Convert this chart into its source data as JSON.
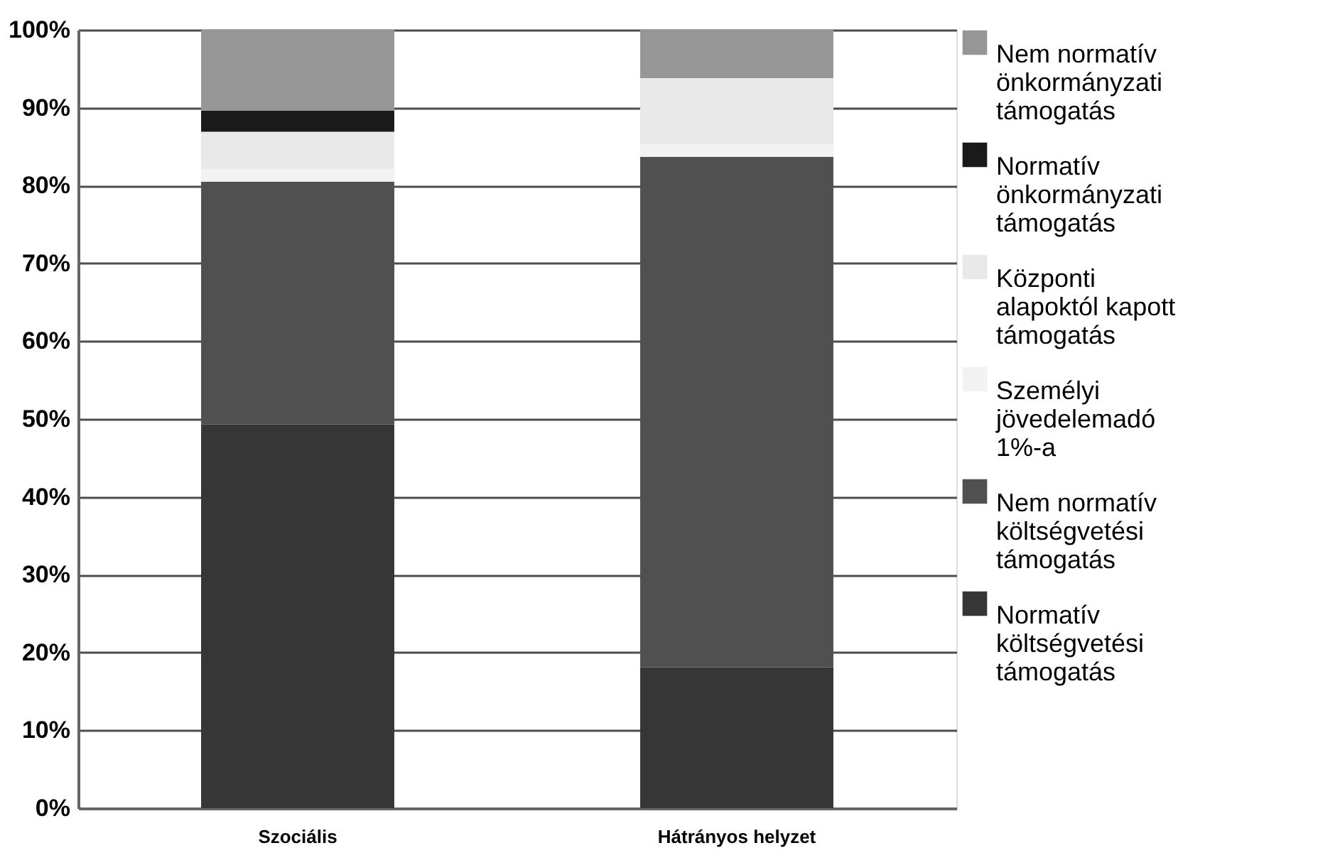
{
  "chart_data": {
    "type": "bar",
    "stacked": true,
    "categories": [
      "Szociális",
      "Hátrányos helyzet"
    ],
    "series": [
      {
        "name": "Normatív költségvetési támogatás",
        "color": "#363636",
        "values": [
          49.3,
          18.1
        ]
      },
      {
        "name": "Nem normatív költségvetési támogatás",
        "color": "#505050",
        "values": [
          31.2,
          65.6
        ]
      },
      {
        "name": "Személyi jövedelemadó 1%-a",
        "color": "#f2f2f2",
        "values": [
          1.6,
          1.6
        ]
      },
      {
        "name": "Központi alapoktól kapott támogatás",
        "color": "#e9e9e9",
        "values": [
          4.8,
          8.5
        ]
      },
      {
        "name": "Normatív önkormányzati támogatás",
        "color": "#1a1a1a",
        "values": [
          2.7,
          0
        ]
      },
      {
        "name": "Nem normatív önkormányzati támogatás",
        "color": "#969696",
        "values": [
          10.4,
          6.2
        ]
      }
    ],
    "ylim": [
      0,
      100
    ],
    "yticks": [
      {
        "value": 0,
        "label": "0%"
      },
      {
        "value": 10,
        "label": "10%"
      },
      {
        "value": 20,
        "label": "20%"
      },
      {
        "value": 30,
        "label": "30%"
      },
      {
        "value": 40,
        "label": "40%"
      },
      {
        "value": 50,
        "label": "50%"
      },
      {
        "value": 60,
        "label": "60%"
      },
      {
        "value": 70,
        "label": "70%"
      },
      {
        "value": 80,
        "label": "80%"
      },
      {
        "value": 90,
        "label": "90%"
      },
      {
        "value": 100,
        "label": "100%"
      }
    ],
    "grid": true,
    "legend": "right"
  }
}
